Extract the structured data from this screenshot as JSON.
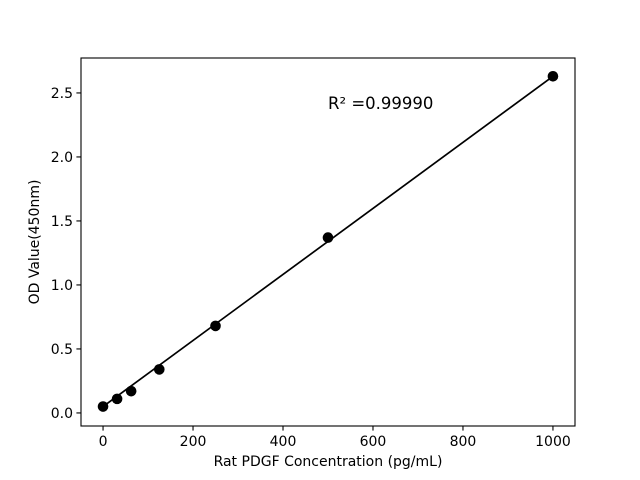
{
  "figure": {
    "background": "#ffffff",
    "foreground": "#000000"
  },
  "chart_data": {
    "type": "scatter",
    "title": "",
    "xlabel": "Rat PDGF Concentration (pg/mL)",
    "ylabel": "OD Value(450nm)",
    "series": [
      {
        "name": "standard-points",
        "x": [
          0,
          31.25,
          62.5,
          125,
          250,
          500,
          1000
        ],
        "y": [
          0.05,
          0.11,
          0.17,
          0.34,
          0.68,
          1.37,
          2.63
        ],
        "marker": "circle",
        "color": "#000000"
      }
    ],
    "fit_line": {
      "x": [
        0,
        1000
      ],
      "y": [
        0.05,
        2.63
      ],
      "color": "#000000"
    },
    "annotation": {
      "text": "R² =0.99990",
      "x": 500,
      "y": 2.375
    },
    "axes": {
      "xticks": [
        0,
        200,
        400,
        600,
        800,
        1000
      ],
      "xtick_labels": [
        "0",
        "200",
        "400",
        "600",
        "800",
        "1000"
      ],
      "yticks": [
        0.0,
        0.5,
        1.0,
        1.5,
        2.0,
        2.5
      ],
      "ytick_labels": [
        "0.0",
        "0.5",
        "1.0",
        "1.5",
        "2.0",
        "2.5"
      ],
      "xlim": [
        -49,
        1049
      ],
      "ylim": [
        -0.102,
        2.773
      ],
      "grid": false,
      "legend": "none"
    }
  }
}
